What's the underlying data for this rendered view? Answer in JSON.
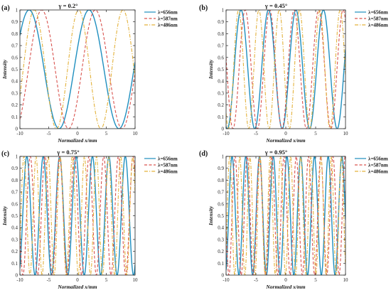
{
  "figure": {
    "line_colors": [
      "#1f8fbf",
      "#d9534f",
      "#e3b23c"
    ],
    "line_styles": [
      "solid",
      "dashed",
      "dashdot"
    ],
    "panels": [
      {
        "label": "(a)",
        "title": "γ = 0.2°"
      },
      {
        "label": "(b)",
        "title": "γ = 0.45°"
      },
      {
        "label": "(c)",
        "title": "γ = 0.75°"
      },
      {
        "label": "(d)",
        "title": "γ = 0.95°"
      }
    ]
  },
  "chart_data": [
    {
      "type": "line",
      "title": "γ = 0.2°",
      "xlabel": "Normalized x/mm",
      "ylabel": "Intensity",
      "xlim": [
        -10,
        10
      ],
      "ylim": [
        0,
        1
      ],
      "xticks": [
        -10,
        -5,
        0,
        5,
        10
      ],
      "yticks": [
        0,
        0.1,
        0.2,
        0.3,
        0.4,
        0.5,
        0.6,
        0.7,
        0.8,
        0.9,
        1
      ],
      "grid": false,
      "legend_position": "top-right",
      "model": "I = cos^2(pi * (x - x0) / period)",
      "series": [
        {
          "name": "λ=656nm",
          "period": 10.4,
          "x0": -8.4
        },
        {
          "name": "λ=587nm",
          "period": 9.3,
          "x0": -6.2
        },
        {
          "name": "λ=486nm",
          "period": 7.7,
          "x0": -7.5
        }
      ]
    },
    {
      "type": "line",
      "title": "γ = 0.45°",
      "xlabel": "Normalized x/mm",
      "ylabel": "Intensity",
      "xlim": [
        -10,
        10
      ],
      "ylim": [
        0,
        1
      ],
      "xticks": [
        -10,
        -5,
        0,
        5,
        10
      ],
      "yticks": [
        0,
        0.1,
        0.2,
        0.3,
        0.4,
        0.5,
        0.6,
        0.7,
        0.8,
        0.9,
        1
      ],
      "grid": false,
      "legend_position": "top-right",
      "model": "I = cos^2(pi * (x - x0) / period)",
      "series": [
        {
          "name": "λ=656nm",
          "period": 4.6,
          "x0": -7.5
        },
        {
          "name": "λ=587nm",
          "period": 4.1,
          "x0": -6.8
        },
        {
          "name": "λ=486nm",
          "period": 3.4,
          "x0": -7.9
        }
      ]
    },
    {
      "type": "line",
      "title": "γ = 0.75°",
      "xlabel": "Normalized x/mm",
      "ylabel": "Intensity",
      "xlim": [
        -10,
        10
      ],
      "ylim": [
        0,
        1
      ],
      "xticks": [
        -10,
        -5,
        0,
        5,
        10
      ],
      "yticks": [
        0,
        0.1,
        0.2,
        0.3,
        0.4,
        0.5,
        0.6,
        0.7,
        0.8,
        0.9,
        1
      ],
      "grid": false,
      "legend_position": "top-right",
      "model": "I = cos^2(pi * (x - x0) / period)",
      "series": [
        {
          "name": "λ=656nm",
          "period": 2.85,
          "x0": -8.8
        },
        {
          "name": "λ=587nm",
          "period": 2.55,
          "x0": -8.2
        },
        {
          "name": "λ=486nm",
          "period": 2.1,
          "x0": -9.3
        }
      ]
    },
    {
      "type": "line",
      "title": "γ = 0.95°",
      "xlabel": "Normalized x/mm",
      "ylabel": "Intensity",
      "xlim": [
        -10,
        10
      ],
      "ylim": [
        0,
        1
      ],
      "xticks": [
        -10,
        -5,
        0,
        5,
        10
      ],
      "yticks": [
        0,
        0.1,
        0.2,
        0.3,
        0.4,
        0.5,
        0.6,
        0.7,
        0.8,
        0.9,
        1
      ],
      "grid": false,
      "legend_position": "top-right",
      "model": "I = cos^2(pi * (x - x0) / period)",
      "series": [
        {
          "name": "λ=656nm",
          "period": 2.3,
          "x0": -9.0
        },
        {
          "name": "λ=587nm",
          "period": 2.05,
          "x0": -8.5
        },
        {
          "name": "λ=486nm",
          "period": 1.7,
          "x0": -9.4
        }
      ]
    }
  ]
}
